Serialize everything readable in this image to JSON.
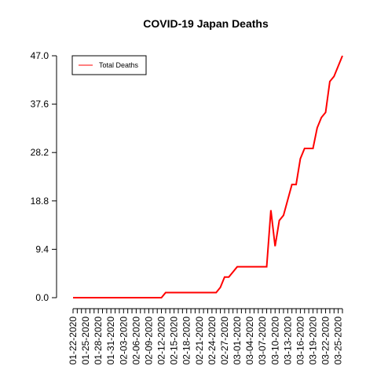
{
  "chart_data": {
    "type": "line",
    "title": "COVID-19 Japan Deaths",
    "categories": [
      "01-22-2020",
      null,
      null,
      "01-25-2020",
      null,
      null,
      "01-28-2020",
      null,
      null,
      "01-31-2020",
      null,
      null,
      "02-03-2020",
      null,
      null,
      "02-06-2020",
      null,
      null,
      "02-09-2020",
      null,
      null,
      "02-12-2020",
      null,
      null,
      "02-15-2020",
      null,
      null,
      "02-18-2020",
      null,
      null,
      "02-21-2020",
      null,
      null,
      "02-24-2020",
      null,
      null,
      "02-27-2020",
      null,
      null,
      "03-01-2020",
      null,
      null,
      "03-04-2020",
      null,
      null,
      "03-07-2020",
      null,
      null,
      "03-10-2020",
      null,
      null,
      "03-13-2020",
      null,
      null,
      "03-16-2020",
      null,
      null,
      "03-19-2020",
      null,
      null,
      "03-22-2020",
      null,
      null,
      "03-25-2020",
      null
    ],
    "series": [
      {
        "name": "Total Deaths",
        "color": "#ff0000",
        "values": [
          0,
          0,
          0,
          0,
          0,
          0,
          0,
          0,
          0,
          0,
          0,
          0,
          0,
          0,
          0,
          0,
          0,
          0,
          0,
          0,
          0,
          0,
          1,
          1,
          1,
          1,
          1,
          1,
          1,
          1,
          1,
          1,
          1,
          1,
          1,
          2,
          4,
          4,
          5,
          6,
          6,
          6,
          6,
          6,
          6,
          6,
          6,
          17,
          10,
          15,
          16,
          19,
          22,
          22,
          27,
          29,
          29,
          29,
          33,
          35,
          36,
          42,
          43,
          45,
          47
        ]
      }
    ],
    "ylim": [
      0,
      47
    ],
    "yticks": [
      {
        "value": 0,
        "label": "0.0"
      },
      9.4,
      18.8,
      28.2,
      37.6,
      {
        "value": 47,
        "label": "47.0"
      }
    ],
    "legend": "top-left"
  }
}
